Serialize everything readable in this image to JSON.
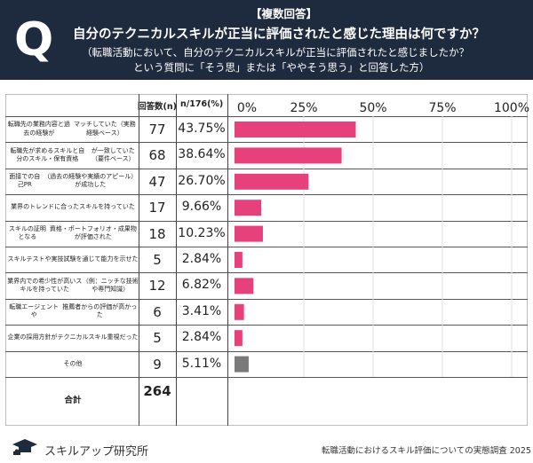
{
  "header": {
    "q_letter": "Q",
    "badge": "【複数回答】",
    "title": "自分のテクニカルスキルが正当に評価されたと感じた理由は何ですか？",
    "sub1": "（転職活動において、自分のテクニカルスキルが正当に評価されたと感じましたか？",
    "sub2": "という質問に「そう思」または「ややそう思う」と回答した方）"
  },
  "colors": {
    "header_bg": "#1e2a3d",
    "bar": "#e6417a",
    "bar_other": "#7a7a7a"
  },
  "chart_data": {
    "type": "bar",
    "orientation": "horizontal",
    "columns": {
      "count": "回答数(n)",
      "percent": "n/176(%)"
    },
    "axis_ticks": [
      "0%",
      "25%",
      "50%",
      "75%",
      "100%"
    ],
    "xlim": [
      0,
      100
    ],
    "rows": [
      {
        "lines": [
          "転職先の業務内容と過去の経験が",
          "マッチしていた（実務経験ベース）"
        ],
        "count": "77",
        "percent_label": "43.75%",
        "value": 43.75,
        "is_other": false
      },
      {
        "lines": [
          "転職先が求めるスキルと自分のスキル・保有資格",
          "が一致していた（要件ベース）"
        ],
        "count": "68",
        "percent_label": "38.64%",
        "value": 38.64,
        "is_other": false
      },
      {
        "lines": [
          "面接での自己PR",
          "（過去の経験や実績のアピール）が成功した"
        ],
        "count": "47",
        "percent_label": "26.70%",
        "value": 26.7,
        "is_other": false
      },
      {
        "lines": [
          "業界のトレンドに合ったスキルを持っていた"
        ],
        "count": "17",
        "percent_label": "9.66%",
        "value": 9.66,
        "is_other": false
      },
      {
        "lines": [
          "スキルの証明となる",
          "資格・ポートフォリオ・成果物が評価された"
        ],
        "count": "18",
        "percent_label": "10.23%",
        "value": 10.23,
        "is_other": false
      },
      {
        "lines": [
          "スキルテストや実技試験を通じて能力を示せた"
        ],
        "count": "5",
        "percent_label": "2.84%",
        "value": 2.84,
        "is_other": false
      },
      {
        "lines": [
          "業界内での希少性が高いスキルを持っていた",
          "（例：ニッチな技術や専門知識）"
        ],
        "count": "12",
        "percent_label": "6.82%",
        "value": 6.82,
        "is_other": false
      },
      {
        "lines": [
          "転職エージェントや",
          "推薦者からの評価が高かった"
        ],
        "count": "6",
        "percent_label": "3.41%",
        "value": 3.41,
        "is_other": false
      },
      {
        "lines": [
          "企業の採用方針がテクニカルスキル重視だった"
        ],
        "count": "5",
        "percent_label": "2.84%",
        "value": 2.84,
        "is_other": false
      },
      {
        "lines": [
          "その他"
        ],
        "count": "9",
        "percent_label": "5.11%",
        "value": 5.11,
        "is_other": true
      }
    ],
    "total": {
      "label": "合計",
      "count": "264"
    }
  },
  "footer": {
    "logo_text": "スキルアップ研究所",
    "source": "転職活動におけるスキル評価についての実態調査 2025"
  }
}
